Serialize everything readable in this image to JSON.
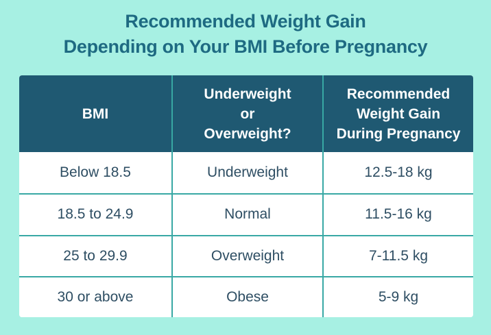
{
  "page": {
    "title_line1": "Recommended Weight Gain",
    "title_line2": "Depending on Your BMI Before Pregnancy"
  },
  "colors": {
    "background": "#a7f0e3",
    "title_text": "#1e6a82",
    "header_background": "#1f5972",
    "header_text": "#fdfefe",
    "body_text": "#2e4e63",
    "grid_line": "#38a8a4",
    "cell_background": "#ffffff"
  },
  "table": {
    "headers": {
      "bmi": "BMI",
      "category": "Underweight\nor\nOverweight?",
      "gain": "Recommended\nWeight Gain\nDuring Pregnancy"
    },
    "rows": [
      {
        "bmi": "Below 18.5",
        "category": "Underweight",
        "gain": "12.5-18 kg"
      },
      {
        "bmi": "18.5 to 24.9",
        "category": "Normal",
        "gain": "11.5-16 kg"
      },
      {
        "bmi": "25 to 29.9",
        "category": "Overweight",
        "gain": "7-11.5 kg"
      },
      {
        "bmi": "30 or above",
        "category": "Obese",
        "gain": "5-9 kg"
      }
    ]
  },
  "chart_data": {
    "type": "table",
    "title": "Recommended Weight Gain Depending on Your BMI Before Pregnancy",
    "columns": [
      "BMI",
      "Underweight or Overweight?",
      "Recommended Weight Gain During Pregnancy"
    ],
    "rows": [
      [
        "Below 18.5",
        "Underweight",
        "12.5-18 kg"
      ],
      [
        "18.5 to 24.9",
        "Normal",
        "11.5-16 kg"
      ],
      [
        "25 to 29.9",
        "Overweight",
        "7-11.5 kg"
      ],
      [
        "30 or above",
        "Obese",
        "5-9 kg"
      ]
    ]
  }
}
